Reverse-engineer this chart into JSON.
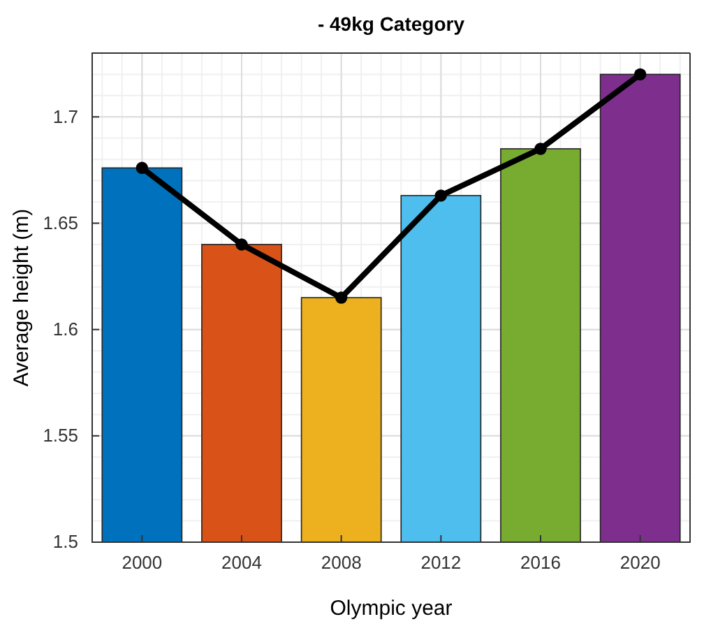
{
  "chart_data": {
    "type": "bar",
    "title": "- 49kg Category",
    "xlabel": "Olympic year",
    "ylabel": "Average height (m)",
    "categories": [
      "2000",
      "2004",
      "2008",
      "2012",
      "2016",
      "2020"
    ],
    "series": [
      {
        "colors": [
          "#0072bd",
          "#d95319",
          "#edb120",
          "#4dbeee",
          "#77ac30",
          "#7e2f8e"
        ],
        "values": [
          1.676,
          1.64,
          1.615,
          1.663,
          1.685,
          1.72
        ]
      },
      {
        "type": "line",
        "color": "#000000",
        "marker": "circle",
        "values": [
          1.676,
          1.64,
          1.615,
          1.663,
          1.685,
          1.72
        ]
      }
    ],
    "ylim": [
      1.5,
      1.73
    ],
    "yticks": [
      1.5,
      1.55,
      1.6,
      1.65,
      1.7
    ],
    "grid": true
  }
}
